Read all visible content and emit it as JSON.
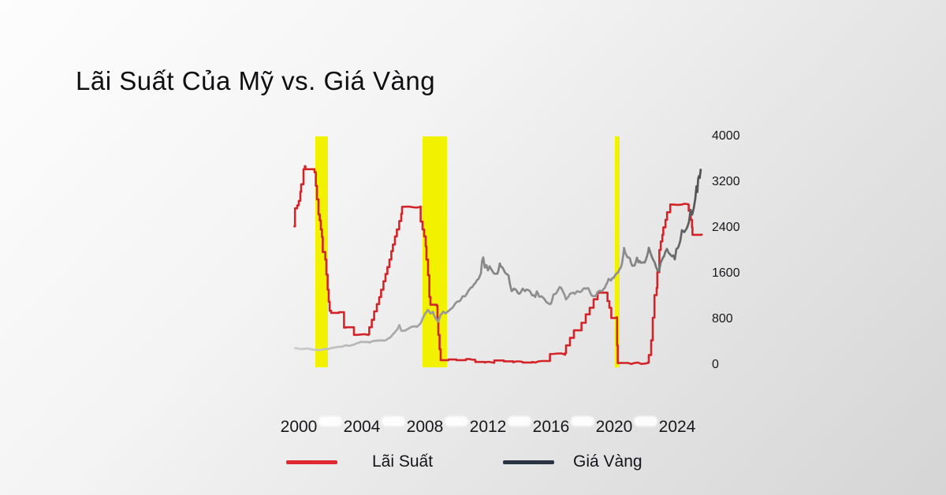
{
  "title": "Lãi Suất Của Mỹ vs. Giá Vàng",
  "colors": {
    "background_start": "#fdfdfd",
    "background_end": "#d5d5d5",
    "interest_line": "#d32529",
    "interest_swatch": "#e02833",
    "gold_line_start": "#cccccc",
    "gold_line_end": "#4e4e4e",
    "gold_swatch": "#2c3444",
    "recession_band": "#f2f200",
    "tick_text": "#18181c",
    "tick_pill": "#ffffff"
  },
  "legend": [
    {
      "label": "Lãi Suất",
      "color": "#e02833"
    },
    {
      "label": "Giá Vàng",
      "color": "#2c3444"
    }
  ],
  "chart_data": {
    "type": "line",
    "title": "Lãi Suất Của Mỹ vs. Giá Vàng",
    "grid": false,
    "legend_position": "bottom",
    "x_ticks": [
      2000,
      2004,
      2008,
      2012,
      2016,
      2020,
      2024
    ],
    "y_ticks_right": [
      0,
      800,
      1600,
      2400,
      3200,
      4000
    ],
    "x_range": [
      1999.7,
      2025.6
    ],
    "y_range_right_gold_usd": [
      0,
      4000
    ],
    "interest_axis_units_per_pct": 527,
    "recession_bands_years": [
      [
        2001.05,
        2001.85
      ],
      [
        2007.85,
        2009.4
      ],
      [
        2020.05,
        2020.35
      ]
    ],
    "series": [
      {
        "name": "Lãi Suất",
        "unit": "percent",
        "interpolation": "step-after",
        "points": [
          [
            1999.72,
            4.6
          ],
          [
            1999.76,
            5.2
          ],
          [
            1999.9,
            5.3
          ],
          [
            2000.0,
            5.45
          ],
          [
            2000.1,
            5.75
          ],
          [
            2000.15,
            6.0
          ],
          [
            2000.3,
            6.5
          ],
          [
            2000.38,
            6.6
          ],
          [
            2000.42,
            6.5
          ],
          [
            2001.0,
            6.4
          ],
          [
            2001.08,
            5.95
          ],
          [
            2001.15,
            5.5
          ],
          [
            2001.25,
            5.0
          ],
          [
            2001.33,
            4.8
          ],
          [
            2001.4,
            4.5
          ],
          [
            2001.47,
            4.25
          ],
          [
            2001.52,
            3.75
          ],
          [
            2001.68,
            3.5
          ],
          [
            2001.75,
            3.0
          ],
          [
            2001.83,
            2.5
          ],
          [
            2001.9,
            2.1
          ],
          [
            2001.96,
            1.8
          ],
          [
            2002.05,
            1.73
          ],
          [
            2002.55,
            1.75
          ],
          [
            2002.87,
            1.24
          ],
          [
            2003.0,
            1.25
          ],
          [
            2003.5,
            1.0
          ],
          [
            2004.42,
            1.02
          ],
          [
            2004.47,
            1.25
          ],
          [
            2004.63,
            1.5
          ],
          [
            2004.78,
            1.78
          ],
          [
            2004.95,
            2.02
          ],
          [
            2005.1,
            2.25
          ],
          [
            2005.22,
            2.5
          ],
          [
            2005.37,
            2.78
          ],
          [
            2005.5,
            3.02
          ],
          [
            2005.62,
            3.25
          ],
          [
            2005.75,
            3.5
          ],
          [
            2005.87,
            3.78
          ],
          [
            2005.97,
            4.0
          ],
          [
            2006.1,
            4.27
          ],
          [
            2006.22,
            4.5
          ],
          [
            2006.37,
            4.78
          ],
          [
            2006.5,
            5.02
          ],
          [
            2006.55,
            5.25
          ],
          [
            2007.7,
            5.26
          ],
          [
            2007.73,
            4.76
          ],
          [
            2007.85,
            4.5
          ],
          [
            2007.95,
            4.27
          ],
          [
            2008.05,
            3.94
          ],
          [
            2008.1,
            3.5
          ],
          [
            2008.2,
            2.98
          ],
          [
            2008.28,
            2.26
          ],
          [
            2008.35,
            2.0
          ],
          [
            2008.75,
            1.96
          ],
          [
            2008.8,
            1.5
          ],
          [
            2008.85,
            1.0
          ],
          [
            2008.93,
            0.52
          ],
          [
            2009.0,
            0.16
          ],
          [
            2009.5,
            0.18
          ],
          [
            2010.0,
            0.16
          ],
          [
            2010.6,
            0.19
          ],
          [
            2011.2,
            0.1
          ],
          [
            2011.8,
            0.08
          ],
          [
            2012.4,
            0.15
          ],
          [
            2013.0,
            0.12
          ],
          [
            2013.6,
            0.09
          ],
          [
            2014.2,
            0.08
          ],
          [
            2014.8,
            0.1
          ],
          [
            2015.4,
            0.13
          ],
          [
            2015.93,
            0.36
          ],
          [
            2016.9,
            0.4
          ],
          [
            2016.95,
            0.65
          ],
          [
            2017.2,
            0.9
          ],
          [
            2017.45,
            1.15
          ],
          [
            2017.93,
            1.4
          ],
          [
            2018.2,
            1.68
          ],
          [
            2018.45,
            1.9
          ],
          [
            2018.7,
            2.18
          ],
          [
            2018.95,
            2.4
          ],
          [
            2019.55,
            2.4
          ],
          [
            2019.58,
            2.12
          ],
          [
            2019.7,
            1.9
          ],
          [
            2019.82,
            1.56
          ],
          [
            2020.15,
            1.58
          ],
          [
            2020.19,
            0.65
          ],
          [
            2020.23,
            0.06
          ],
          [
            2022.15,
            0.08
          ],
          [
            2022.2,
            0.33
          ],
          [
            2022.35,
            0.82
          ],
          [
            2022.45,
            1.57
          ],
          [
            2022.56,
            2.32
          ],
          [
            2022.7,
            2.56
          ],
          [
            2022.74,
            3.08
          ],
          [
            2022.87,
            3.82
          ],
          [
            2022.96,
            4.1
          ],
          [
            2023.06,
            4.32
          ],
          [
            2023.12,
            4.57
          ],
          [
            2023.26,
            4.82
          ],
          [
            2023.36,
            5.07
          ],
          [
            2023.56,
            5.33
          ],
          [
            2024.7,
            5.32
          ],
          [
            2024.73,
            5.12
          ],
          [
            2024.86,
            4.82
          ],
          [
            2024.94,
            4.57
          ],
          [
            2024.97,
            4.32
          ],
          [
            2025.55,
            4.33
          ]
        ]
      },
      {
        "name": "Giá Vàng",
        "unit": "USD/oz",
        "interpolation": "linear",
        "points": [
          [
            1999.72,
            292
          ],
          [
            2000.0,
            285
          ],
          [
            2000.25,
            281
          ],
          [
            2000.5,
            288
          ],
          [
            2000.75,
            273
          ],
          [
            2001.0,
            266
          ],
          [
            2001.25,
            260
          ],
          [
            2001.5,
            270
          ],
          [
            2001.75,
            282
          ],
          [
            2002.0,
            290
          ],
          [
            2002.25,
            303
          ],
          [
            2002.5,
            318
          ],
          [
            2002.75,
            317
          ],
          [
            2003.0,
            347
          ],
          [
            2003.2,
            334
          ],
          [
            2003.5,
            356
          ],
          [
            2003.75,
            386
          ],
          [
            2004.0,
            406
          ],
          [
            2004.25,
            399
          ],
          [
            2004.5,
            393
          ],
          [
            2004.75,
            420
          ],
          [
            2005.0,
            426
          ],
          [
            2005.25,
            430
          ],
          [
            2005.5,
            432
          ],
          [
            2005.75,
            472
          ],
          [
            2006.0,
            548
          ],
          [
            2006.25,
            622
          ],
          [
            2006.38,
            700
          ],
          [
            2006.5,
            602
          ],
          [
            2006.75,
            600
          ],
          [
            2007.0,
            642
          ],
          [
            2007.25,
            672
          ],
          [
            2007.5,
            666
          ],
          [
            2007.75,
            742
          ],
          [
            2008.0,
            892
          ],
          [
            2008.18,
            968
          ],
          [
            2008.35,
            902
          ],
          [
            2008.5,
            932
          ],
          [
            2008.65,
            832
          ],
          [
            2008.85,
            758
          ],
          [
            2009.0,
            882
          ],
          [
            2009.15,
            932
          ],
          [
            2009.3,
            902
          ],
          [
            2009.5,
            942
          ],
          [
            2009.75,
            1002
          ],
          [
            2010.0,
            1098
          ],
          [
            2010.2,
            1112
          ],
          [
            2010.4,
            1202
          ],
          [
            2010.55,
            1198
          ],
          [
            2010.75,
            1302
          ],
          [
            2011.0,
            1362
          ],
          [
            2011.2,
            1432
          ],
          [
            2011.4,
            1512
          ],
          [
            2011.55,
            1602
          ],
          [
            2011.63,
            1822
          ],
          [
            2011.7,
            1882
          ],
          [
            2011.8,
            1702
          ],
          [
            2011.9,
            1752
          ],
          [
            2012.0,
            1662
          ],
          [
            2012.1,
            1722
          ],
          [
            2012.25,
            1652
          ],
          [
            2012.4,
            1592
          ],
          [
            2012.6,
            1602
          ],
          [
            2012.75,
            1772
          ],
          [
            2012.9,
            1712
          ],
          [
            2013.0,
            1672
          ],
          [
            2013.15,
            1602
          ],
          [
            2013.3,
            1562
          ],
          [
            2013.4,
            1402
          ],
          [
            2013.5,
            1292
          ],
          [
            2013.65,
            1332
          ],
          [
            2013.75,
            1322
          ],
          [
            2013.9,
            1252
          ],
          [
            2014.0,
            1242
          ],
          [
            2014.2,
            1332
          ],
          [
            2014.35,
            1292
          ],
          [
            2014.5,
            1312
          ],
          [
            2014.65,
            1292
          ],
          [
            2014.8,
            1222
          ],
          [
            2015.0,
            1192
          ],
          [
            2015.1,
            1282
          ],
          [
            2015.25,
            1192
          ],
          [
            2015.4,
            1202
          ],
          [
            2015.55,
            1162
          ],
          [
            2015.7,
            1102
          ],
          [
            2015.85,
            1072
          ],
          [
            2016.0,
            1072
          ],
          [
            2016.15,
            1232
          ],
          [
            2016.3,
            1242
          ],
          [
            2016.45,
            1322
          ],
          [
            2016.55,
            1362
          ],
          [
            2016.7,
            1322
          ],
          [
            2016.85,
            1232
          ],
          [
            2016.95,
            1142
          ],
          [
            2017.05,
            1182
          ],
          [
            2017.2,
            1242
          ],
          [
            2017.35,
            1262
          ],
          [
            2017.5,
            1242
          ],
          [
            2017.65,
            1292
          ],
          [
            2017.8,
            1282
          ],
          [
            2017.95,
            1292
          ],
          [
            2018.05,
            1342
          ],
          [
            2018.2,
            1332
          ],
          [
            2018.35,
            1342
          ],
          [
            2018.5,
            1252
          ],
          [
            2018.65,
            1212
          ],
          [
            2018.8,
            1202
          ],
          [
            2018.95,
            1282
          ],
          [
            2019.1,
            1302
          ],
          [
            2019.25,
            1292
          ],
          [
            2019.4,
            1342
          ],
          [
            2019.5,
            1412
          ],
          [
            2019.65,
            1502
          ],
          [
            2019.8,
            1482
          ],
          [
            2019.95,
            1522
          ],
          [
            2020.1,
            1582
          ],
          [
            2020.25,
            1622
          ],
          [
            2020.35,
            1682
          ],
          [
            2020.5,
            1772
          ],
          [
            2020.6,
            1962
          ],
          [
            2020.63,
            2052
          ],
          [
            2020.72,
            1952
          ],
          [
            2020.85,
            1882
          ],
          [
            2021.0,
            1862
          ],
          [
            2021.15,
            1742
          ],
          [
            2021.3,
            1742
          ],
          [
            2021.45,
            1872
          ],
          [
            2021.55,
            1802
          ],
          [
            2021.7,
            1792
          ],
          [
            2021.85,
            1792
          ],
          [
            2022.0,
            1822
          ],
          [
            2022.15,
            1972
          ],
          [
            2022.2,
            2042
          ],
          [
            2022.35,
            1922
          ],
          [
            2022.5,
            1832
          ],
          [
            2022.65,
            1722
          ],
          [
            2022.75,
            1652
          ],
          [
            2022.85,
            1642
          ],
          [
            2022.95,
            1782
          ],
          [
            2023.1,
            1882
          ],
          [
            2023.25,
            1982
          ],
          [
            2023.35,
            2022
          ],
          [
            2023.45,
            1962
          ],
          [
            2023.6,
            1922
          ],
          [
            2023.75,
            1922
          ],
          [
            2023.85,
            1852
          ],
          [
            2023.95,
            2032
          ],
          [
            2024.05,
            2042
          ],
          [
            2024.2,
            2172
          ],
          [
            2024.3,
            2352
          ],
          [
            2024.45,
            2332
          ],
          [
            2024.6,
            2392
          ],
          [
            2024.75,
            2502
          ],
          [
            2024.85,
            2722
          ],
          [
            2024.95,
            2632
          ],
          [
            2025.05,
            2752
          ],
          [
            2025.15,
            2902
          ],
          [
            2025.22,
            3122
          ],
          [
            2025.28,
            3022
          ],
          [
            2025.33,
            3242
          ],
          [
            2025.38,
            3302
          ],
          [
            2025.43,
            3282
          ],
          [
            2025.5,
            3432
          ]
        ]
      }
    ]
  }
}
